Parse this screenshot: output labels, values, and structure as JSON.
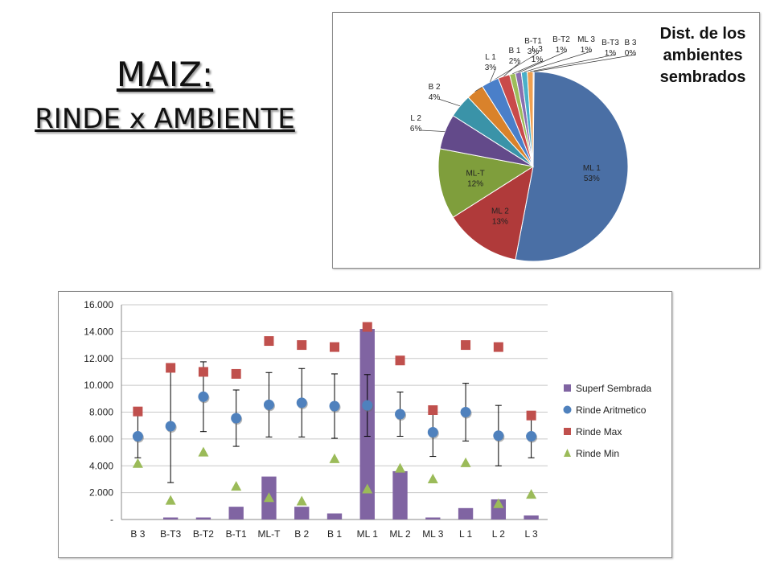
{
  "title": {
    "line1": "MAIZ:",
    "line2": "RINDE x AMBIENTE"
  },
  "chart_data": [
    {
      "type": "pie",
      "title": "Dist. de los ambientes sembrados",
      "title_lines": [
        "Dist. de los",
        "ambientes",
        "sembrados"
      ],
      "slices": [
        {
          "label": "ML 1",
          "value": 53,
          "pct": "53%",
          "color": "#4a6fa5"
        },
        {
          "label": "ML 2",
          "value": 13,
          "pct": "13%",
          "color": "#b03a3a"
        },
        {
          "label": "ML-T",
          "value": 12,
          "pct": "12%",
          "color": "#7f9e3c"
        },
        {
          "label": "L 2",
          "value": 6,
          "pct": "6%",
          "color": "#634a8a"
        },
        {
          "label": "B 2",
          "value": 4,
          "pct": "4%",
          "color": "#3a93a8"
        },
        {
          "label": "B-T1",
          "value": 3,
          "pct": "3%",
          "color": "#d9822b"
        },
        {
          "label": "L 1",
          "value": 3,
          "pct": "3%",
          "color": "#4a7fc9"
        },
        {
          "label": "B 1",
          "value": 2,
          "pct": "2%",
          "color": "#c94a4a"
        },
        {
          "label": "L 3",
          "value": 1,
          "pct": "1%",
          "color": "#9dbd5a"
        },
        {
          "label": "B-T2",
          "value": 1,
          "pct": "1%",
          "color": "#8a6fb0"
        },
        {
          "label": "ML 3",
          "value": 1,
          "pct": "1%",
          "color": "#4ab0c9"
        },
        {
          "label": "B-T3",
          "value": 1,
          "pct": "1%",
          "color": "#f0a050"
        },
        {
          "label": "B 3",
          "value": 0,
          "pct": "0%",
          "color": "#a9c0e0"
        }
      ]
    },
    {
      "type": "bar",
      "categories": [
        "B 3",
        "B-T3",
        "B-T2",
        "B-T1",
        "ML-T",
        "B 2",
        "B 1",
        "ML 1",
        "ML 2",
        "ML 3",
        "L 1",
        "L 2",
        "L 3"
      ],
      "y_ticks": [
        "-",
        "2.000",
        "4.000",
        "6.000",
        "8.000",
        "10.000",
        "12.000",
        "14.000",
        "16.000"
      ],
      "ylim": [
        0,
        16000
      ],
      "legend_position": "right",
      "series": [
        {
          "name": "Superf Sembrada",
          "kind": "bar",
          "color": "#8064a2",
          "values": [
            0,
            150,
            150,
            950,
            3200,
            950,
            450,
            14200,
            3600,
            150,
            850,
            1500,
            300
          ]
        },
        {
          "name": "Rinde Aritmetico",
          "kind": "marker-circle",
          "color": "#4f81bd",
          "values": [
            6200,
            6950,
            9150,
            7550,
            8550,
            8700,
            8450,
            8500,
            7850,
            6500,
            8000,
            6250,
            6200
          ],
          "error": [
            1600,
            4200,
            2600,
            2100,
            2400,
            2550,
            2400,
            2300,
            1650,
            1800,
            2150,
            2250,
            1600
          ]
        },
        {
          "name": "Rinde Max",
          "kind": "marker-square",
          "color": "#c0504d",
          "values": [
            8050,
            11300,
            11000,
            10850,
            13300,
            13000,
            12850,
            14350,
            11850,
            8150,
            13000,
            12850,
            7750
          ]
        },
        {
          "name": "Rinde Min",
          "kind": "marker-triangle",
          "color": "#9bbb59",
          "values": [
            4150,
            1400,
            5000,
            2450,
            1600,
            1350,
            4500,
            2250,
            3800,
            3000,
            4200,
            1150,
            1850
          ]
        }
      ]
    }
  ]
}
